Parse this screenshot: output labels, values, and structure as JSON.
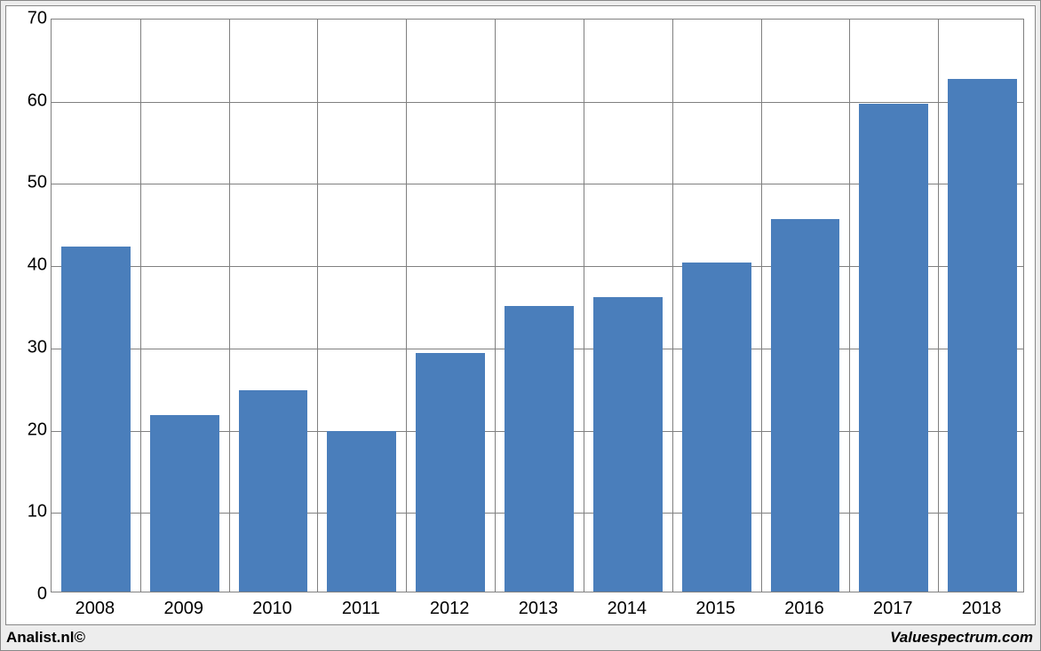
{
  "chart": {
    "type": "bar",
    "categories": [
      "2008",
      "2009",
      "2010",
      "2011",
      "2012",
      "2013",
      "2014",
      "2015",
      "2016",
      "2017",
      "2018"
    ],
    "values": [
      42,
      21.5,
      24.5,
      19.5,
      29,
      34.7,
      35.8,
      40,
      45.3,
      59.3,
      62.3
    ],
    "ylim": [
      0,
      70
    ],
    "yticks": [
      0,
      10,
      20,
      30,
      40,
      50,
      60,
      70
    ],
    "bar_color": "#4a7ebb",
    "background_color": "#ffffff",
    "outer_background": "#ededed",
    "grid_color": "#808080",
    "border_color": "#888888",
    "bar_width_ratio": 0.78,
    "tick_fontsize": 20,
    "credit_fontsize": 17
  },
  "credits": {
    "left": "Analist.nl©",
    "right": "Valuespectrum.com"
  }
}
